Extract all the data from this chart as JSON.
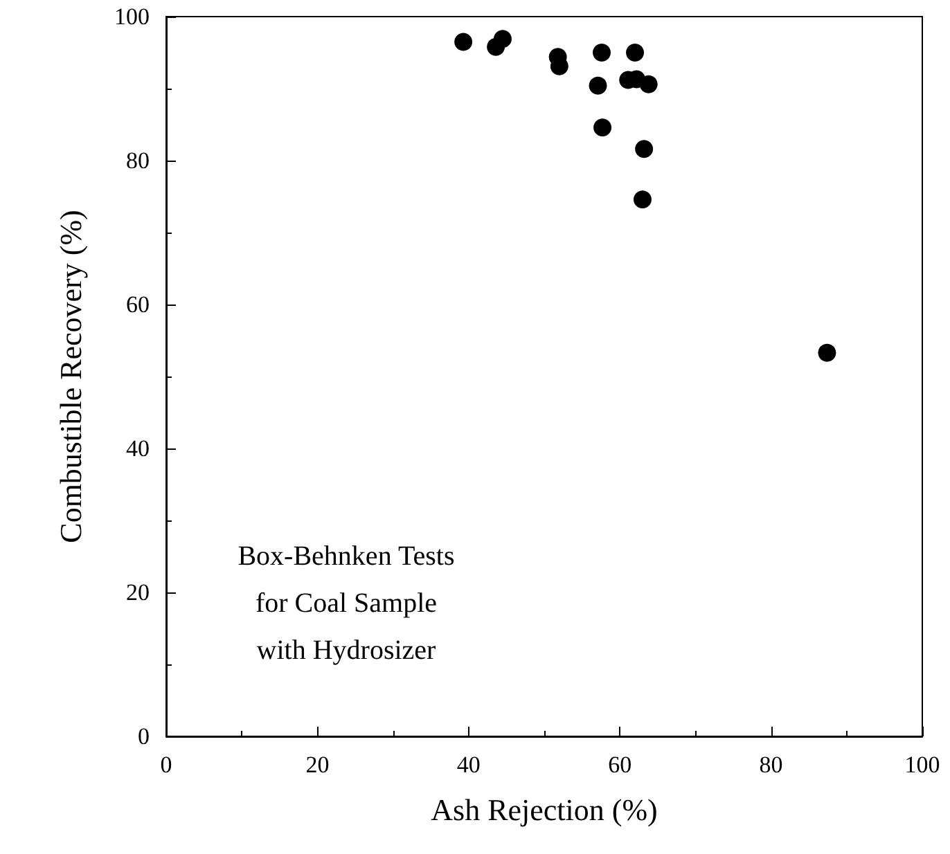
{
  "chart_data": {
    "type": "scatter",
    "xlabel": "Ash Rejection (%)",
    "ylabel": "Combustible Recovery (%)",
    "x": [
      39.3,
      43.6,
      44.5,
      51.8,
      52.0,
      57.1,
      57.7,
      57.6,
      62.0,
      61.1,
      62.2,
      63.8,
      63.2,
      63.0,
      87.4
    ],
    "series": [
      {
        "color": "#000000",
        "values": [
          96.5,
          95.8,
          96.9,
          94.4,
          93.1,
          90.4,
          84.6,
          95.0,
          95.0,
          91.2,
          91.3,
          90.6,
          81.6,
          74.6,
          53.3
        ]
      }
    ],
    "xlim": [
      0,
      100
    ],
    "xticks": [
      0,
      20,
      40,
      60,
      80,
      100
    ],
    "ylim": [
      0,
      100
    ],
    "yticks": [
      0,
      20,
      40,
      60,
      80,
      100
    ],
    "marker": "circle",
    "annotations": [
      "Box-Behnken Tests",
      "for Coal Sample",
      "with Hydrosizer"
    ]
  }
}
